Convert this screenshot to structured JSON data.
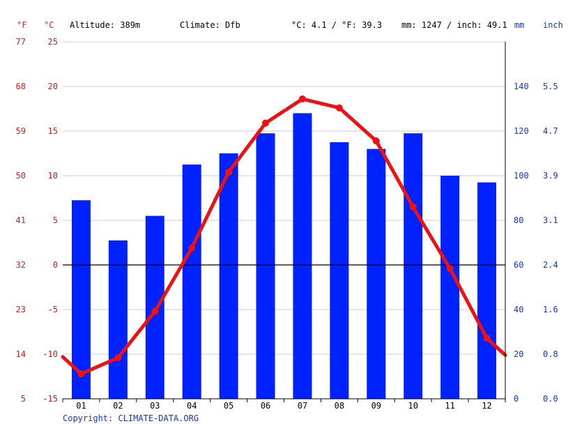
{
  "header": {
    "unit_f": "°F",
    "unit_c": "°C",
    "altitude": "Altitude: 389m",
    "climate": "Climate: Dfb",
    "temp_summary": "°C: 4.1 / °F: 39.3",
    "precip_summary": "mm: 1247 / inch: 49.1",
    "unit_mm": "mm",
    "unit_inch": "inch"
  },
  "footer": {
    "copyright": "Copyright: CLIMATE-DATA.ORG"
  },
  "colors": {
    "temperature_line": "#ee1111",
    "precipitation_bar": "#0022ff",
    "grid": "#cccccc",
    "zero_line": "#000000"
  },
  "chart_data": {
    "type": "bar+line",
    "categories": [
      "01",
      "02",
      "03",
      "04",
      "05",
      "06",
      "07",
      "08",
      "09",
      "10",
      "11",
      "12"
    ],
    "series": [
      {
        "kind": "bar",
        "axis": "right",
        "unit": "mm",
        "values": [
          89,
          71,
          82,
          105,
          110,
          119,
          128,
          115,
          112,
          119,
          100,
          97
        ]
      },
      {
        "kind": "line",
        "axis": "left",
        "unit": "°C",
        "values": [
          -12.2,
          -10.4,
          -5.2,
          1.9,
          10.4,
          15.9,
          18.6,
          17.6,
          13.9,
          6.5,
          -0.4,
          -8.2
        ],
        "edge_values": [
          -10.3,
          -10.1
        ]
      }
    ],
    "left_axis_c": {
      "ticks": [
        25,
        20,
        15,
        10,
        5,
        0,
        -5,
        -10,
        -15
      ],
      "range": [
        -15,
        25
      ]
    },
    "left_axis_f": {
      "ticks": [
        "77",
        "68",
        "59",
        "50",
        "41",
        "32",
        "23",
        "14",
        "5"
      ]
    },
    "right_axis_mm": {
      "ticks": [
        140,
        120,
        100,
        80,
        60,
        40,
        20,
        0
      ],
      "range": [
        0,
        160
      ]
    },
    "right_axis_inch": {
      "ticks": [
        "5.5",
        "4.7",
        "3.9",
        "3.1",
        "2.4",
        "1.6",
        "0.8",
        "0.0"
      ]
    },
    "grid": true
  }
}
